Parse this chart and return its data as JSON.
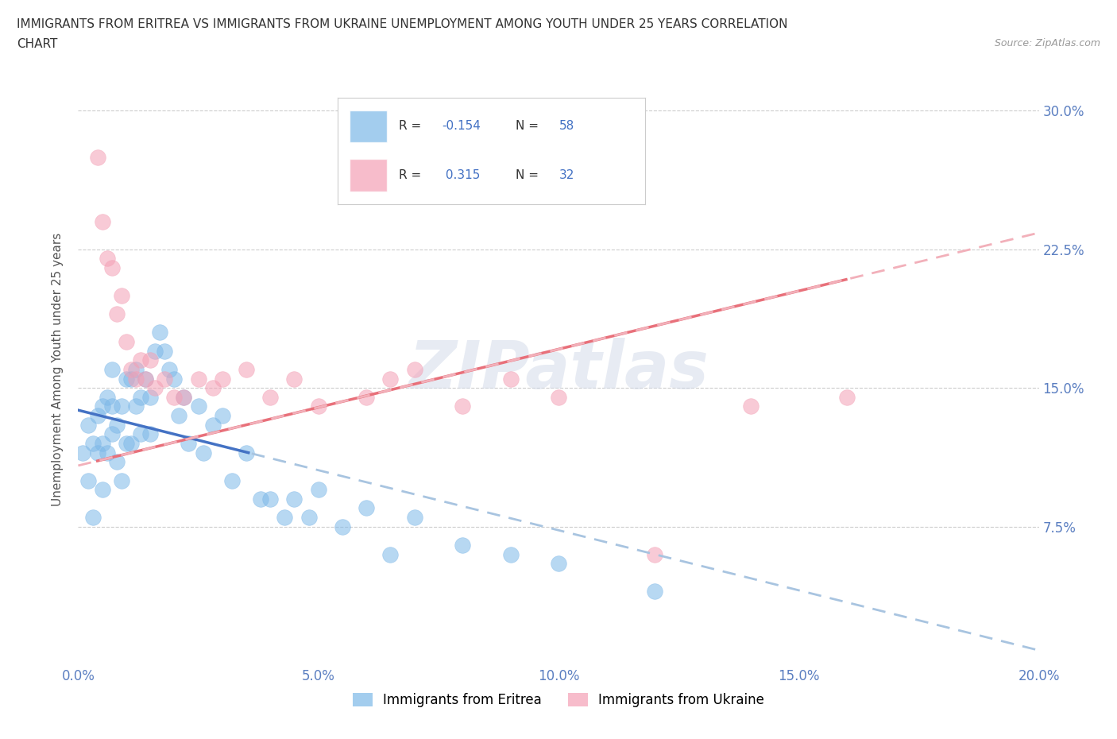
{
  "title_line1": "IMMIGRANTS FROM ERITREA VS IMMIGRANTS FROM UKRAINE UNEMPLOYMENT AMONG YOUTH UNDER 25 YEARS CORRELATION",
  "title_line2": "CHART",
  "source": "Source: ZipAtlas.com",
  "ylabel": "Unemployment Among Youth under 25 years",
  "xlim": [
    0.0,
    0.2
  ],
  "ylim": [
    0.0,
    0.32
  ],
  "yticks": [
    0.0,
    0.075,
    0.15,
    0.225,
    0.3
  ],
  "ytick_labels": [
    "",
    "7.5%",
    "15.0%",
    "22.5%",
    "30.0%"
  ],
  "xticks": [
    0.0,
    0.05,
    0.1,
    0.15,
    0.2
  ],
  "xtick_labels": [
    "0.0%",
    "5.0%",
    "10.0%",
    "15.0%",
    "20.0%"
  ],
  "eritrea_color": "#7db8e8",
  "ukraine_color": "#f4a0b5",
  "eritrea_R": -0.154,
  "eritrea_N": 58,
  "ukraine_R": 0.315,
  "ukraine_N": 32,
  "eritrea_x": [
    0.001,
    0.002,
    0.002,
    0.003,
    0.003,
    0.004,
    0.004,
    0.005,
    0.005,
    0.005,
    0.006,
    0.006,
    0.007,
    0.007,
    0.007,
    0.008,
    0.008,
    0.009,
    0.009,
    0.01,
    0.01,
    0.011,
    0.011,
    0.012,
    0.012,
    0.013,
    0.013,
    0.014,
    0.015,
    0.015,
    0.016,
    0.017,
    0.018,
    0.019,
    0.02,
    0.021,
    0.022,
    0.023,
    0.025,
    0.026,
    0.028,
    0.03,
    0.032,
    0.035,
    0.038,
    0.04,
    0.043,
    0.045,
    0.048,
    0.05,
    0.055,
    0.06,
    0.065,
    0.07,
    0.08,
    0.09,
    0.1,
    0.12
  ],
  "eritrea_y": [
    0.115,
    0.1,
    0.13,
    0.12,
    0.08,
    0.135,
    0.115,
    0.14,
    0.12,
    0.095,
    0.145,
    0.115,
    0.16,
    0.14,
    0.125,
    0.13,
    0.11,
    0.14,
    0.1,
    0.155,
    0.12,
    0.155,
    0.12,
    0.16,
    0.14,
    0.145,
    0.125,
    0.155,
    0.145,
    0.125,
    0.17,
    0.18,
    0.17,
    0.16,
    0.155,
    0.135,
    0.145,
    0.12,
    0.14,
    0.115,
    0.13,
    0.135,
    0.1,
    0.115,
    0.09,
    0.09,
    0.08,
    0.09,
    0.08,
    0.095,
    0.075,
    0.085,
    0.06,
    0.08,
    0.065,
    0.06,
    0.055,
    0.04
  ],
  "ukraine_x": [
    0.004,
    0.005,
    0.006,
    0.007,
    0.008,
    0.009,
    0.01,
    0.011,
    0.012,
    0.013,
    0.014,
    0.015,
    0.016,
    0.018,
    0.02,
    0.022,
    0.025,
    0.028,
    0.03,
    0.035,
    0.04,
    0.045,
    0.05,
    0.06,
    0.065,
    0.07,
    0.08,
    0.09,
    0.1,
    0.12,
    0.14,
    0.16
  ],
  "ukraine_y": [
    0.275,
    0.24,
    0.22,
    0.215,
    0.19,
    0.2,
    0.175,
    0.16,
    0.155,
    0.165,
    0.155,
    0.165,
    0.15,
    0.155,
    0.145,
    0.145,
    0.155,
    0.15,
    0.155,
    0.16,
    0.145,
    0.155,
    0.14,
    0.145,
    0.155,
    0.16,
    0.14,
    0.155,
    0.145,
    0.06,
    0.14,
    0.145
  ],
  "trend_eritrea_intercept": 0.138,
  "trend_eritrea_slope": -0.65,
  "trend_ukraine_intercept": 0.108,
  "trend_ukraine_slope": 0.63,
  "watermark": "ZIPatlas",
  "background_color": "#ffffff",
  "grid_color": "#cccccc",
  "tick_color": "#5b7fc1",
  "legend_R_color": "#4472c4",
  "trend_eritrea_color": "#4472c4",
  "trend_ukraine_color": "#e8707a",
  "trend_eritrea_dash_color": "#a8c4e0",
  "trend_ukraine_dash_color": "#f2b0ba"
}
